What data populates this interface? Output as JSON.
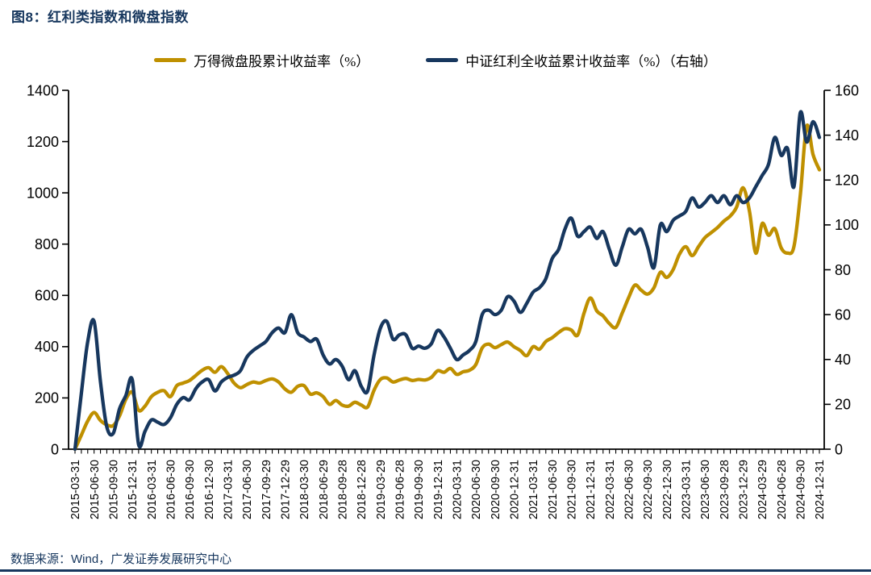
{
  "figure": {
    "title": "图8：红利类指数和微盘指数",
    "source": "数据来源：Wind，广发证券发展研究中心"
  },
  "colors": {
    "navy": "#17375E",
    "gold": "#BF9000",
    "axis": "#000000"
  },
  "legend": [
    {
      "label": "万得微盘股累计收益率（%）",
      "color": "#BF9000"
    },
    {
      "label": "中证红利全收益累计收益率（%）（右轴）",
      "color": "#17375E"
    }
  ],
  "chart_data": {
    "type": "line",
    "title": "图8：红利类指数和微盘指数",
    "x_labels": [
      "2015-03-31",
      "2015-06-30",
      "2015-09-30",
      "2015-12-31",
      "2016-03-31",
      "2016-06-30",
      "2016-09-30",
      "2016-12-30",
      "2017-03-31",
      "2017-06-30",
      "2017-09-29",
      "2017-12-29",
      "2018-03-30",
      "2018-06-29",
      "2018-09-28",
      "2018-12-28",
      "2019-03-29",
      "2019-06-28",
      "2019-09-30",
      "2019-12-31",
      "2020-03-31",
      "2020-06-30",
      "2020-09-30",
      "2020-12-31",
      "2021-03-31",
      "2021-06-30",
      "2021-09-30",
      "2021-12-31",
      "2022-03-31",
      "2022-06-30",
      "2022-09-30",
      "2022-12-30",
      "2023-03-31",
      "2023-06-30",
      "2023-09-28",
      "2023-12-29",
      "2024-03-29",
      "2024-06-28",
      "2024-09-30",
      "2024-12-31"
    ],
    "values_per_label": 3,
    "left_axis": {
      "min": 0,
      "max": 1400,
      "tick_values": [
        0,
        200,
        400,
        600,
        800,
        1000,
        1200,
        1400
      ]
    },
    "right_axis": {
      "min": 0,
      "max": 160,
      "tick_values": [
        0,
        20,
        40,
        60,
        80,
        100,
        120,
        140,
        160
      ]
    },
    "grid": false,
    "legend_position": "top",
    "series": [
      {
        "name": "万得微盘股累计收益率（%）",
        "axis": "left",
        "color": "#BF9000",
        "values": [
          0,
          55,
          110,
          143,
          112,
          95,
          92,
          130,
          195,
          222,
          152,
          168,
          205,
          222,
          228,
          205,
          248,
          258,
          268,
          288,
          308,
          318,
          300,
          322,
          295,
          258,
          240,
          252,
          262,
          258,
          268,
          274,
          262,
          235,
          222,
          245,
          248,
          215,
          220,
          205,
          175,
          190,
          172,
          168,
          183,
          172,
          165,
          230,
          272,
          278,
          262,
          270,
          276,
          268,
          272,
          270,
          280,
          306,
          300,
          315,
          292,
          302,
          308,
          330,
          395,
          410,
          396,
          408,
          418,
          400,
          385,
          365,
          400,
          390,
          420,
          435,
          455,
          470,
          465,
          445,
          530,
          590,
          540,
          520,
          490,
          475,
          530,
          590,
          640,
          620,
          605,
          630,
          690,
          670,
          700,
          760,
          790,
          755,
          790,
          825,
          845,
          865,
          890,
          910,
          945,
          1020,
          930,
          765,
          880,
          835,
          860,
          785,
          765,
          790,
          990,
          1260,
          1150,
          1090
        ]
      },
      {
        "name": "中证红利全收益累计收益率（%）（右轴）",
        "axis": "right",
        "color": "#17375E",
        "values": [
          0,
          25,
          48,
          57,
          30,
          10,
          7,
          18,
          24,
          31,
          2,
          8,
          13,
          12,
          11,
          14,
          20,
          23,
          22,
          27,
          30,
          31,
          26,
          30,
          32,
          33,
          35,
          41,
          44,
          46,
          48,
          52,
          54,
          52,
          60,
          52,
          50,
          48,
          49,
          42,
          38,
          40,
          37,
          31,
          35,
          28,
          26,
          42,
          54,
          57,
          49,
          51,
          51,
          45,
          46,
          45,
          47,
          53,
          50,
          45,
          40,
          42,
          44,
          48,
          60,
          62,
          60,
          62,
          68,
          66,
          61,
          65,
          70,
          72,
          76,
          85,
          89,
          98,
          103,
          95,
          97,
          99,
          94,
          97,
          89,
          82,
          90,
          98,
          96,
          98,
          90,
          81,
          100,
          97,
          102,
          104,
          106,
          112,
          108,
          110,
          113,
          110,
          113,
          109,
          113,
          110,
          112,
          117,
          122,
          127,
          139,
          131,
          134,
          117,
          150,
          137,
          146,
          139
        ]
      }
    ]
  }
}
